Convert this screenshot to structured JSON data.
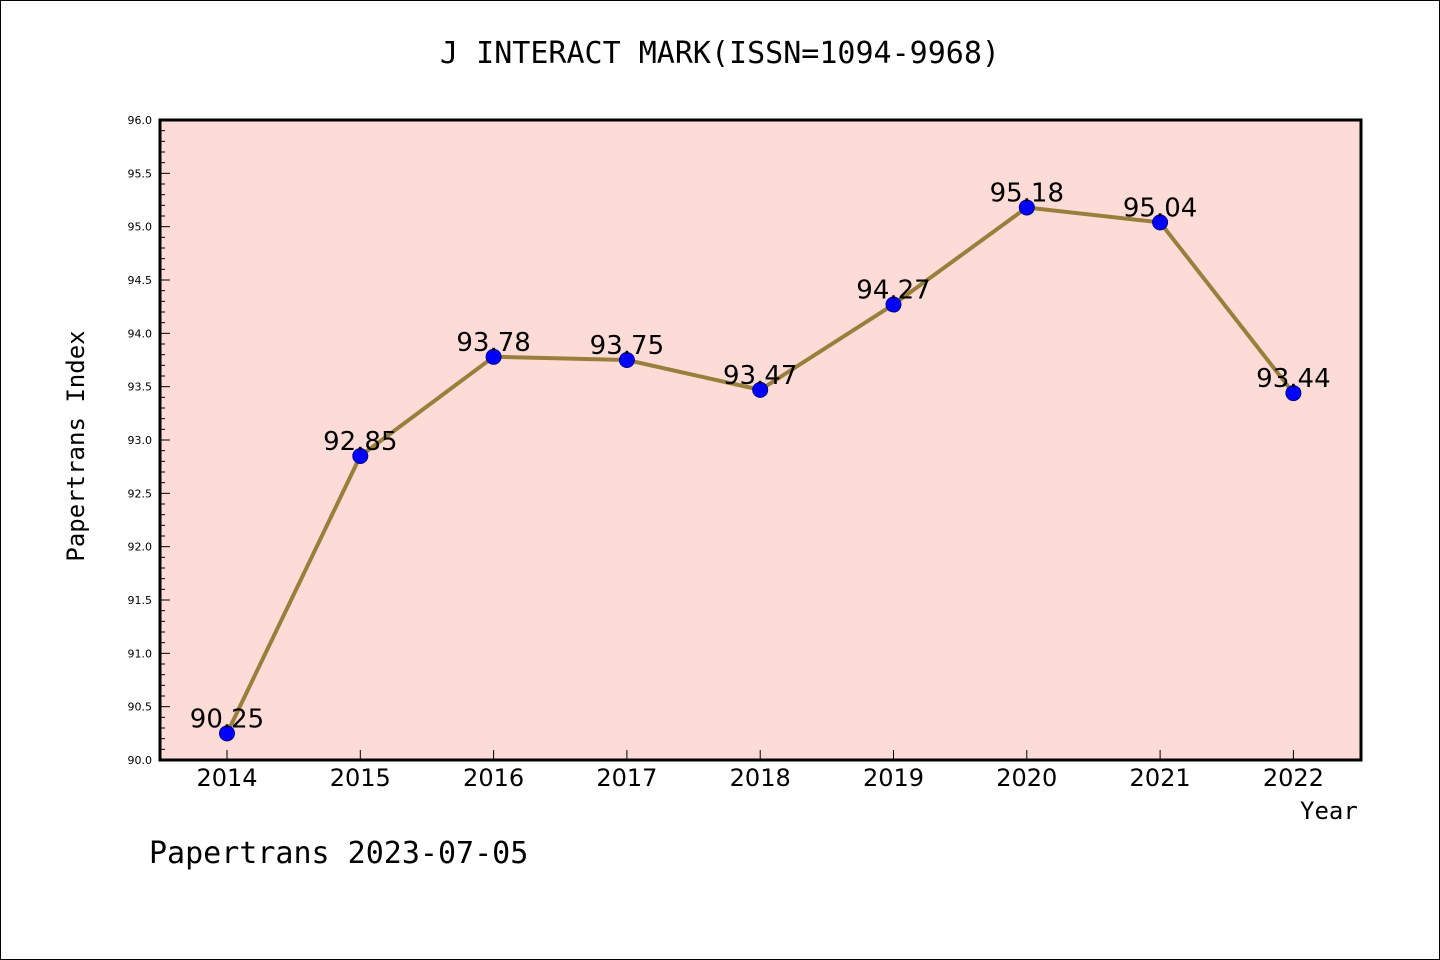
{
  "title": "J INTERACT MARK(ISSN=1094-9968)",
  "footer": "Papertrans 2023-07-05",
  "colors": {
    "plot_background": "#fddcd8",
    "line": "#9a7f3c",
    "marker": "#0000ff",
    "axis": "#000000"
  },
  "chart_data": {
    "type": "line",
    "title": "J INTERACT MARK(ISSN=1094-9968)",
    "xlabel": "Year",
    "ylabel": "Papertrans Index",
    "categories": [
      "2014",
      "2015",
      "2016",
      "2017",
      "2018",
      "2019",
      "2020",
      "2021",
      "2022"
    ],
    "series": [
      {
        "values": [
          90.25,
          92.85,
          93.78,
          93.75,
          93.47,
          94.27,
          95.18,
          95.04,
          93.44
        ],
        "labels": [
          "90.25",
          "92.85",
          "93.78",
          "93.75",
          "93.47",
          "94.27",
          "95.18",
          "95.04",
          "93.44"
        ]
      }
    ],
    "ylim": [
      90.0,
      96.0
    ],
    "yticks": [
      "90.0",
      "90.5",
      "91.0",
      "91.5",
      "92.0",
      "92.5",
      "93.0",
      "93.5",
      "94.0",
      "94.5",
      "95.0",
      "95.5",
      "96.0"
    ],
    "grid": false,
    "legend": "none"
  }
}
